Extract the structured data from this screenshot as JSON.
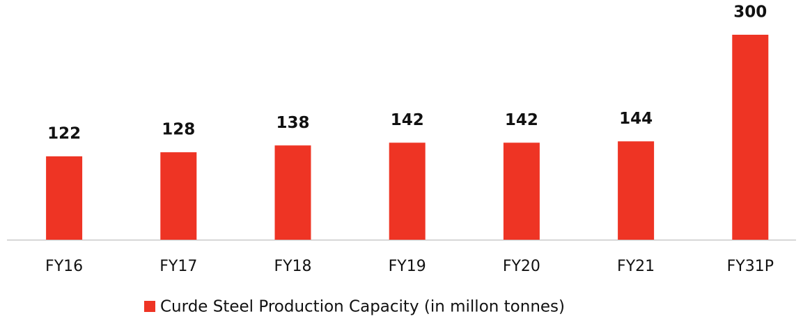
{
  "chart_data": {
    "type": "bar",
    "categories": [
      "FY16",
      "FY17",
      "FY18",
      "FY19",
      "FY20",
      "FY21",
      "FY31P"
    ],
    "series": [
      {
        "name": "Curde Steel Production Capacity (in millon tonnes)",
        "color": "#ee3424",
        "values": [
          122,
          128,
          138,
          142,
          142,
          144,
          300
        ]
      }
    ]
  }
}
